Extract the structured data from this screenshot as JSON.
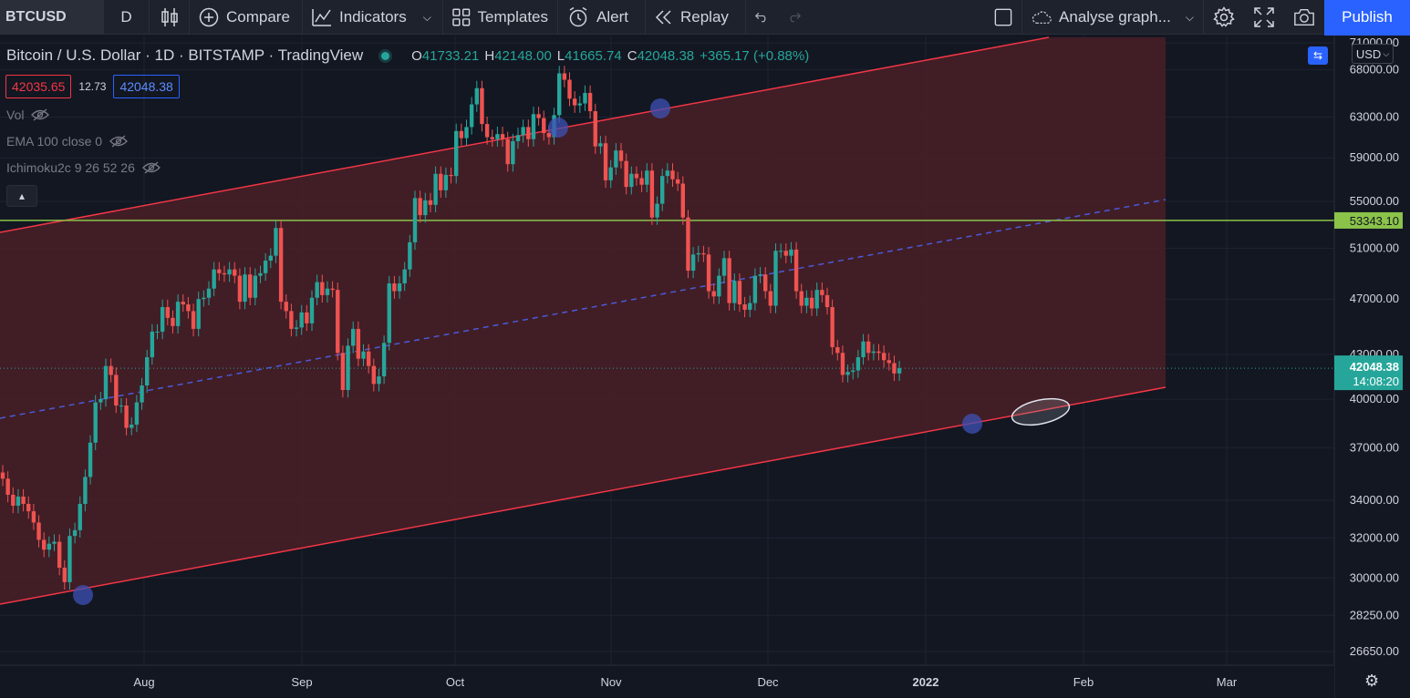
{
  "toolbar": {
    "symbol": "BTCUSD",
    "interval": "D",
    "compare_label": "Compare",
    "indicators_label": "Indicators",
    "templates_label": "Templates",
    "alert_label": "Alert",
    "replay_label": "Replay",
    "layout_name": "Analyse graph...",
    "publish_label": "Publish",
    "icons": [
      "candles-icon",
      "plus-circle-icon",
      "indicators-icon",
      "templates-icon",
      "alert-clock-icon",
      "replay-icon",
      "undo-icon",
      "redo-icon",
      "fullscreen-icon",
      "settings-icon",
      "camera-icon"
    ]
  },
  "legend": {
    "title": "Bitcoin / U.S. Dollar · 1D · BITSTAMP · TradingView",
    "o_key": "O",
    "o": "41733.21",
    "h_key": "H",
    "h": "42148.00",
    "l_key": "L",
    "l": "41665.74",
    "c_key": "C",
    "c": "42048.38",
    "change": "+365.17 (+0.88%)",
    "bid": "42035.65",
    "spread": "12.73",
    "ask": "42048.38"
  },
  "indicators": [
    {
      "label": "Vol"
    },
    {
      "label": "EMA 100 close 0"
    },
    {
      "label": "Ichimoku2c 9 26 52 26"
    }
  ],
  "currency": "USD",
  "colors": {
    "background": "#131722",
    "up": "#26a69a",
    "down": "#ef5350",
    "channel": "#f23645",
    "channel_fill": "#4a1f27",
    "midline": "#3f51b5",
    "horizontal": "#8bc34a",
    "accent": "#2962ff"
  },
  "chart_data": {
    "type": "candlestick",
    "price_axis": [
      "71000.00",
      "68000.00",
      "63000.00",
      "59000.00",
      "55000.00",
      "51000.00",
      "47000.00",
      "43000.00",
      "40000.00",
      "37000.00",
      "34000.00",
      "32000.00",
      "30000.00",
      "28250.00",
      "26650.00"
    ],
    "time_axis": [
      "Aug",
      "Sep",
      "Oct",
      "Nov",
      "Dec",
      "2022",
      "Feb",
      "Mar"
    ],
    "last_price": "42048.38",
    "countdown": "14:08:20",
    "horizontal_line": "53343.10",
    "log_scale": true,
    "drawings": [
      "parallel-channel",
      "horizontal-line",
      "ellipse",
      "circle-markers"
    ],
    "closes": [
      35200,
      34300,
      33700,
      34200,
      33800,
      33400,
      32800,
      31900,
      31400,
      31700,
      31800,
      30500,
      29800,
      32100,
      32400,
      33800,
      35300,
      37300,
      39800,
      40000,
      42200,
      41600,
      39600,
      39600,
      38200,
      38400,
      39800,
      40900,
      42800,
      44600,
      44600,
      46400,
      45600,
      45000,
      46800,
      46600,
      46100,
      44800,
      47000,
      47100,
      47800,
      49300,
      49000,
      48900,
      49300,
      48800,
      46800,
      48900,
      47100,
      48800,
      49000,
      50000,
      50400,
      52700,
      46800,
      46100,
      44800,
      44900,
      46000,
      45200,
      47100,
      48300,
      47300,
      47800,
      47700,
      43100,
      40600,
      43600,
      44800,
      42700,
      43200,
      42200,
      41000,
      41500,
      43800,
      48200,
      47600,
      48200,
      49300,
      51500,
      55300,
      53800,
      55100,
      54700,
      57500,
      56000,
      57400,
      57300,
      61600,
      60900,
      62000,
      64300,
      66000,
      62300,
      61000,
      60800,
      61300,
      60800,
      58400,
      60600,
      61200,
      62000,
      60800,
      63300,
      62900,
      61400,
      61000,
      63200,
      67600,
      66900,
      64900,
      64200,
      64400,
      65500,
      63600,
      60100,
      60400,
      56900,
      58100,
      59700,
      58700,
      56300,
      57500,
      57100,
      56500,
      57800,
      53600,
      54800,
      57300,
      57800,
      57000,
      56600,
      53600,
      49200,
      50500,
      50600,
      50500,
      47600,
      47200,
      48800,
      50200,
      46700,
      48400,
      46600,
      46200,
      46700,
      48800,
      48900,
      47600,
      46500,
      50800,
      50800,
      50400,
      50900,
      47600,
      46500,
      47100,
      46300,
      47700,
      47300,
      46400,
      43500,
      43100,
      41600,
      41800,
      41900,
      42800,
      43900,
      43100,
      43200,
      43100,
      42600,
      42400,
      41700,
      42048
    ]
  }
}
